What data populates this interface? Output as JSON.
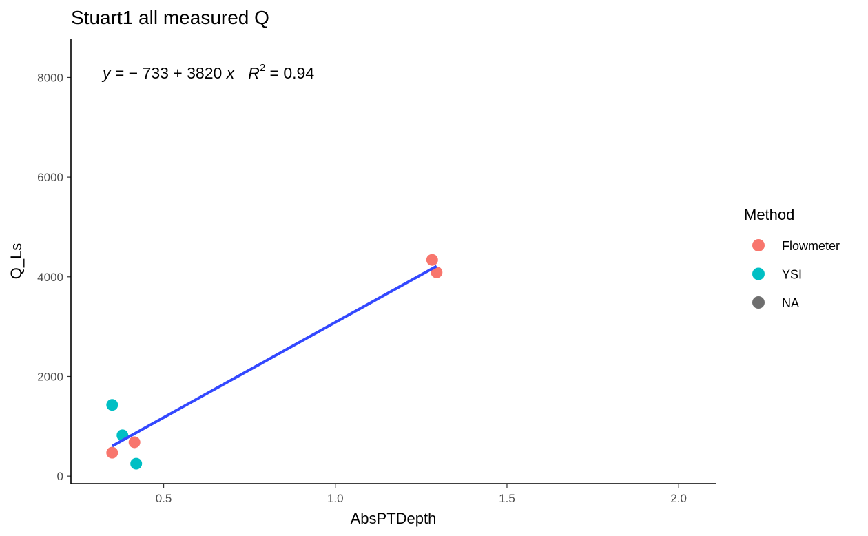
{
  "chart_data": {
    "type": "scatter",
    "title": "Stuart1 all measured Q",
    "xlabel": "AbsPTDepth",
    "ylabel": "Q_Ls",
    "xlim": [
      0.23,
      2.11
    ],
    "ylim": [
      -150,
      8780
    ],
    "x_ticks": [
      {
        "value": 0.5,
        "label": "0.5"
      },
      {
        "value": 1.0,
        "label": "1.0"
      },
      {
        "value": 1.5,
        "label": "1.5"
      },
      {
        "value": 2.0,
        "label": "2.0"
      }
    ],
    "y_ticks": [
      {
        "value": 0,
        "label": "0"
      },
      {
        "value": 2000,
        "label": "2000"
      },
      {
        "value": 4000,
        "label": "4000"
      },
      {
        "value": 6000,
        "label": "6000"
      },
      {
        "value": 8000,
        "label": "8000"
      }
    ],
    "grid": false,
    "legend": {
      "title": "Method",
      "position": "right",
      "items": [
        {
          "label": "Flowmeter",
          "color": "#F8766D"
        },
        {
          "label": "YSI",
          "color": "#00BFC4"
        },
        {
          "label": "NA",
          "color": "#6E6E6E"
        }
      ]
    },
    "series": [
      {
        "name": "Flowmeter",
        "color": "#F8766D",
        "points": [
          {
            "x": 0.35,
            "y": 470
          },
          {
            "x": 0.415,
            "y": 680
          },
          {
            "x": 1.282,
            "y": 4340
          },
          {
            "x": 1.295,
            "y": 4090
          }
        ]
      },
      {
        "name": "YSI",
        "color": "#00BFC4",
        "points": [
          {
            "x": 0.35,
            "y": 1430
          },
          {
            "x": 0.38,
            "y": 820
          },
          {
            "x": 0.42,
            "y": 250
          }
        ]
      }
    ],
    "fit_line": {
      "color": "#3348FF",
      "intercept": -733,
      "slope": 3820,
      "x_range": [
        0.35,
        1.295
      ]
    },
    "annotation": {
      "y": "y",
      "eq_part": " = − 733 + 3820 ",
      "x": "x",
      "r": "R",
      "sup": "2",
      "r2_part": " = 0.94"
    }
  }
}
